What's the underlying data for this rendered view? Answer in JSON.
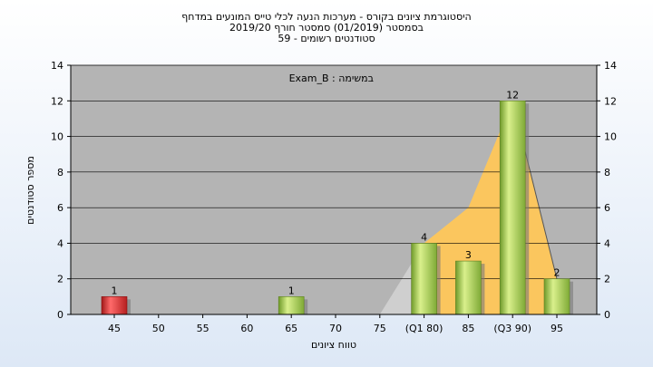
{
  "chart_data": {
    "type": "bar",
    "title_lines": [
      "היסטוגרמת ציונים בקורס - מערכות הנעה לכלי טייס המונעים במדחף",
      "בסמסטר  (01/2019)  סמסטר חורף 2019/20",
      "סטודנטים רשומים - 59"
    ],
    "xlabel": "טווח ציונים",
    "ylabel": "מספר סטודנטים",
    "annotation": "Exam_B : במשימה",
    "categories": [
      "45",
      "50",
      "55",
      "60",
      "65",
      "70",
      "75",
      "(Q1 80)",
      "85",
      "(Q3 90)",
      "95"
    ],
    "values": [
      1,
      0,
      0,
      0,
      1,
      0,
      0,
      4,
      3,
      12,
      2
    ],
    "data_labels": [
      "1",
      "",
      "",
      "",
      "1",
      "",
      "",
      "4",
      "3",
      "12",
      "2"
    ],
    "bar_colors": [
      "red",
      "green",
      "green",
      "green",
      "green",
      "green",
      "green",
      "green",
      "green",
      "green",
      "green"
    ],
    "cumulative_area": [
      0,
      0,
      0,
      0,
      0,
      0,
      0,
      4,
      6,
      12,
      2
    ],
    "ylim": [
      0,
      14
    ],
    "yticks": [
      0,
      2,
      4,
      6,
      8,
      10,
      12,
      14
    ],
    "grid": true,
    "colors": {
      "plot_bg": "#b4b4b4",
      "grid": "#000000",
      "bar_red": "#e03030",
      "bar_green": "#9cc94c",
      "area": "#ffc75a",
      "area_shadow": "#cfcfcf"
    }
  }
}
